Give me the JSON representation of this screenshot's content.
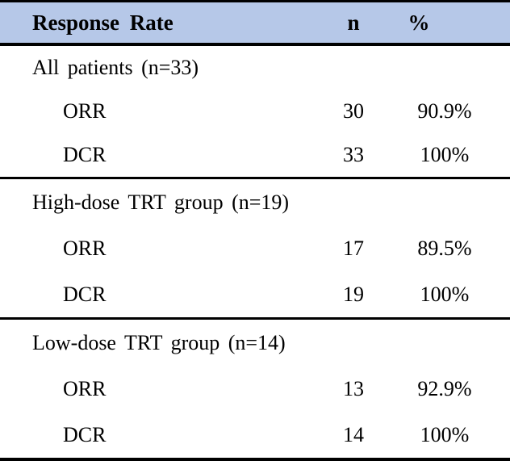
{
  "colors": {
    "header_bg": "#b6c8e8",
    "border": "#000000",
    "text": "#000000"
  },
  "table": {
    "headers": {
      "label": "Response Rate",
      "n": "n",
      "pct": "%"
    },
    "sections": [
      {
        "title": "All patients (n=33)",
        "rows": [
          {
            "label": "ORR",
            "n": "30",
            "pct": "90.9%"
          },
          {
            "label": "DCR",
            "n": "33",
            "pct": "100%"
          }
        ]
      },
      {
        "title": "High-dose TRT group (n=19)",
        "rows": [
          {
            "label": "ORR",
            "n": "17",
            "pct": "89.5%"
          },
          {
            "label": "DCR",
            "n": "19",
            "pct": "100%"
          }
        ]
      },
      {
        "title": "Low-dose TRT group (n=14)",
        "rows": [
          {
            "label": "ORR",
            "n": "13",
            "pct": "92.9%"
          },
          {
            "label": "DCR",
            "n": "14",
            "pct": "100%"
          }
        ]
      }
    ]
  },
  "chart_data": {
    "type": "table",
    "title": "Response Rate",
    "columns": [
      "Response Rate",
      "n",
      "%"
    ],
    "groups": [
      {
        "group": "All patients (n=33)",
        "rows": [
          [
            "ORR",
            30,
            "90.9%"
          ],
          [
            "DCR",
            33,
            "100%"
          ]
        ]
      },
      {
        "group": "High-dose TRT group (n=19)",
        "rows": [
          [
            "ORR",
            17,
            "89.5%"
          ],
          [
            "DCR",
            19,
            "100%"
          ]
        ]
      },
      {
        "group": "Low-dose TRT group (n=14)",
        "rows": [
          [
            "ORR",
            13,
            "92.9%"
          ],
          [
            "DCR",
            14,
            "100%"
          ]
        ]
      }
    ]
  }
}
